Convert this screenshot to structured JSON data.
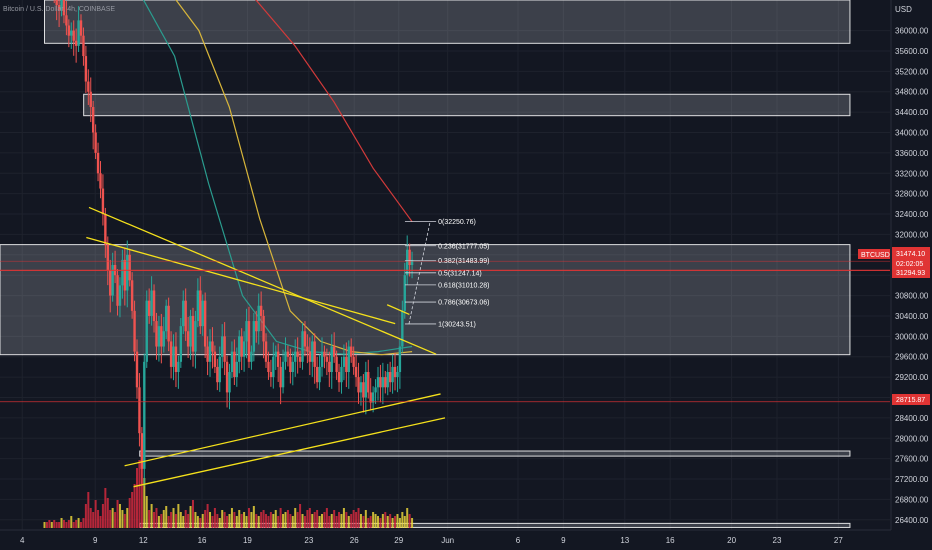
{
  "header": {
    "symbol_title": "Bitcoin / U.S. Dollar, 4h, COINBASE",
    "currency": "USD"
  },
  "price_tags": {
    "symbol": "BTCUSD",
    "last": "31474.10",
    "countdown": "02:02:05",
    "level_upper": "31294.93",
    "level_lower": "28715.87"
  },
  "colors": {
    "background": "#131722",
    "up": "#26a69a",
    "down": "#ef5350",
    "zone": "#d1d4dc",
    "trendline": "#f5e11b",
    "ma_teal": "#2a9d8f",
    "ma_yellow": "#d7b53a",
    "ma_red": "#d23a3a",
    "volume_yellow": "#e8d23a",
    "volume_red": "#d1293d",
    "level_red": "#e03434"
  },
  "chart_data": {
    "type": "candlestick",
    "title": "Bitcoin / U.S. Dollar, 4h, COINBASE",
    "x_tick_labels": [
      "4",
      "9",
      "12",
      "16",
      "19",
      "23",
      "26",
      "29",
      "Jun",
      "6",
      "9",
      "13",
      "16",
      "20",
      "23",
      "27"
    ],
    "y_tick_labels": [
      "36000.00",
      "35600.00",
      "35200.00",
      "34800.00",
      "34400.00",
      "34000.00",
      "33600.00",
      "33200.00",
      "32800.00",
      "32400.00",
      "32000.00",
      "31600.00",
      "31200.00",
      "30800.00",
      "30400.00",
      "30000.00",
      "29600.00",
      "29200.00",
      "28800.00",
      "28400.00",
      "28000.00",
      "27600.00",
      "27200.00",
      "26800.00",
      "26400.00"
    ],
    "ylim": [
      26200,
      36600
    ],
    "price_levels": [
      31474.1,
      31294.93,
      28715.87
    ],
    "zones": [
      {
        "from": 35750,
        "to": 36600
      },
      {
        "from": 34330,
        "to": 34750
      },
      {
        "from": 29640,
        "to": 31800
      },
      {
        "from": 27650,
        "to": 27750
      },
      {
        "from": 26250,
        "to": 26330
      }
    ],
    "fib_levels": [
      {
        "label": "0(32250.76)",
        "value": 32250.76
      },
      {
        "label": "0.236(31777.05)",
        "value": 31777.05
      },
      {
        "label": "0.382(31483.99)",
        "value": 31483.99
      },
      {
        "label": "0.5(31247.14)",
        "value": 31247.14
      },
      {
        "label": "0.618(31010.28)",
        "value": 31010.28
      },
      {
        "label": "0.786(30673.06)",
        "value": 30673.06
      },
      {
        "label": "1(30243.51)",
        "value": 30243.51
      }
    ],
    "closes": [
      37300,
      37000,
      36900,
      37100,
      36800,
      36500,
      36400,
      36600,
      36300,
      36100,
      35900,
      36000,
      35800,
      35700,
      36200,
      35900,
      35500,
      35000,
      34800,
      34500,
      34000,
      33600,
      33200,
      32900,
      32400,
      31800,
      31300,
      30800,
      31400,
      31200,
      30600,
      31000,
      31500,
      30900,
      31600,
      31100,
      30500,
      29700,
      29000,
      28100,
      27400,
      29500,
      30700,
      30400,
      30900,
      30300,
      29800,
      30200,
      29800,
      30100,
      30600,
      29900,
      29400,
      29800,
      29300,
      29500,
      30200,
      30700,
      30100,
      29800,
      30400,
      29700,
      30300,
      30900,
      30200,
      30700,
      29800,
      29500,
      29900,
      29700,
      29400,
      29100,
      29600,
      30000,
      29500,
      28900,
      29300,
      29700,
      29200,
      29500,
      30000,
      29600,
      29900,
      30300,
      29500,
      29700,
      30300,
      30100,
      30600,
      30400,
      29900,
      29500,
      29300,
      29200,
      29600,
      29700,
      29400,
      29000,
      29500,
      29700,
      29600,
      29300,
      29500,
      29700,
      29600,
      29500,
      30100,
      29800,
      29700,
      29500,
      29900,
      29400,
      29100,
      29400,
      29700,
      29600,
      29500,
      29300,
      29800,
      29600,
      29300,
      29100,
      29400,
      29600,
      29300,
      29800,
      29600,
      29400,
      29200,
      28900,
      29100,
      28800,
      29300,
      28900,
      28700,
      28900,
      29000,
      29200,
      29000,
      29200,
      29000,
      29300,
      29100,
      29400,
      29200,
      29300,
      29800,
      30500,
      31200,
      31700,
      31400,
      31500
    ],
    "volume_x_fraction_note": "",
    "moving_averages": [
      {
        "color": "ma_teal",
        "values": [
          37200,
          36700,
          35500,
          33000,
          30800,
          29900,
          29700,
          29650,
          29700,
          29800
        ]
      },
      {
        "color": "ma_yellow",
        "values": [
          37200,
          36800,
          36000,
          34500,
          32300,
          30500,
          29900,
          29700,
          29640,
          29700
        ]
      },
      {
        "color": "ma_red",
        "values": [
          37500,
          37200,
          36600,
          35700,
          34600,
          33300,
          32250
        ]
      }
    ],
    "trendlines": [
      {
        "from": [
          0.1,
          32530
        ],
        "to": [
          0.49,
          29650
        ]
      },
      {
        "from": [
          0.097,
          31940
        ],
        "to": [
          0.444,
          30250
        ]
      },
      {
        "from": [
          0.14,
          27460
        ],
        "to": [
          0.495,
          28870
        ]
      },
      {
        "from": [
          0.15,
          27050
        ],
        "to": [
          0.5,
          28400
        ]
      },
      {
        "from": [
          0.435,
          30620
        ],
        "to": [
          0.46,
          30430
        ]
      }
    ],
    "volume": {
      "note": "",
      "values": [
        3,
        3,
        4,
        3,
        4,
        3,
        3,
        5,
        4,
        3,
        4,
        6,
        3,
        4,
        5,
        3,
        5,
        12,
        18,
        10,
        8,
        14,
        9,
        6,
        12,
        20,
        15,
        9,
        10,
        8,
        14,
        12,
        9,
        7,
        10,
        15,
        18,
        22,
        30,
        34,
        40,
        25,
        16,
        9,
        12,
        8,
        10,
        6,
        7,
        9,
        11,
        6,
        8,
        10,
        7,
        12,
        8,
        6,
        9,
        7,
        11,
        14,
        8,
        6,
        5,
        7,
        9,
        12,
        8,
        6,
        10,
        7,
        5,
        9,
        8,
        6,
        7,
        10,
        8,
        6,
        9,
        7,
        8,
        6,
        10,
        8,
        11,
        7,
        6,
        8,
        9,
        7,
        6,
        8,
        7,
        9,
        6,
        10,
        7,
        8,
        9,
        7,
        6,
        10,
        8,
        12,
        7,
        6,
        9,
        10,
        7,
        8,
        9,
        6,
        7,
        8,
        10,
        6,
        7,
        9,
        6,
        8,
        7,
        10,
        8,
        6,
        7,
        9,
        8,
        10,
        7,
        6,
        9,
        5,
        6,
        8,
        7,
        6,
        5,
        7,
        8,
        6,
        7,
        5,
        6,
        7,
        5,
        8,
        6,
        10,
        7,
        5
      ]
    }
  }
}
